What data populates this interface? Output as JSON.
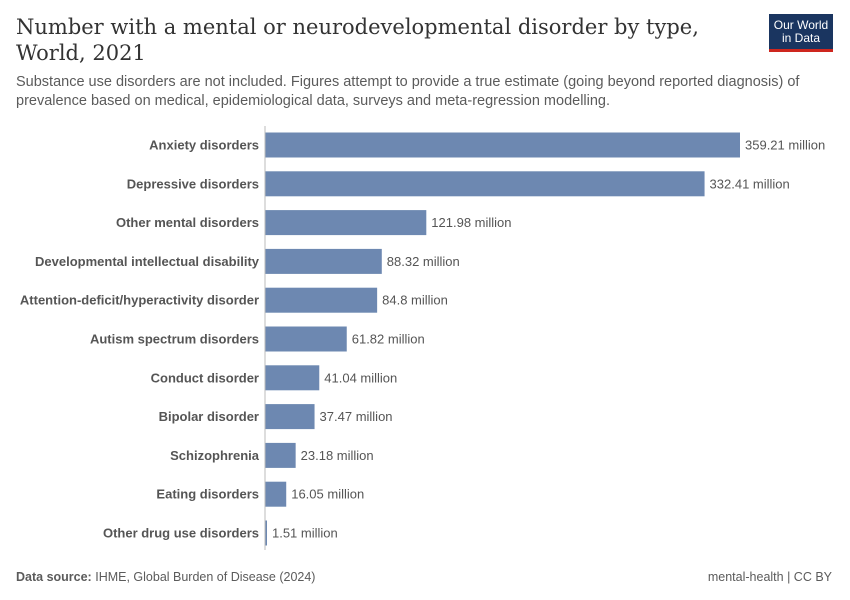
{
  "title": "Number with a mental or neurodevelopmental disorder by type, World, 2021",
  "subtitle": "Substance use disorders are not included. Figures attempt to provide a true estimate (going beyond reported diagnosis) of prevalence based on medical, epidemiological data, surveys and meta-regression modelling.",
  "logo": {
    "line1": "Our World",
    "line2": "in Data"
  },
  "footer": {
    "source_label": "Data source:",
    "source": "IHME, Global Burden of Disease (2024)",
    "right": "mental-health | CC BY"
  },
  "colors": {
    "bar": "#6d88b1",
    "logo_bg": "#1a3560",
    "logo_accent": "#ce261e"
  },
  "chart_data": {
    "type": "bar",
    "orientation": "horizontal",
    "unit": "million",
    "categories": [
      "Anxiety disorders",
      "Depressive disorders",
      "Other mental disorders",
      "Developmental intellectual disability",
      "Attention-deficit/hyperactivity disorder",
      "Autism spectrum disorders",
      "Conduct disorder",
      "Bipolar disorder",
      "Schizophrenia",
      "Eating disorders",
      "Other drug use disorders"
    ],
    "values": [
      359.21,
      332.41,
      121.98,
      88.32,
      84.8,
      61.82,
      41.04,
      37.47,
      23.18,
      16.05,
      1.51
    ],
    "labels": [
      "359.21 million",
      "332.41 million",
      "121.98 million",
      "88.32 million",
      "84.8 million",
      "61.82 million",
      "41.04 million",
      "37.47 million",
      "23.18 million",
      "16.05 million",
      "1.51 million"
    ],
    "grid": false
  }
}
